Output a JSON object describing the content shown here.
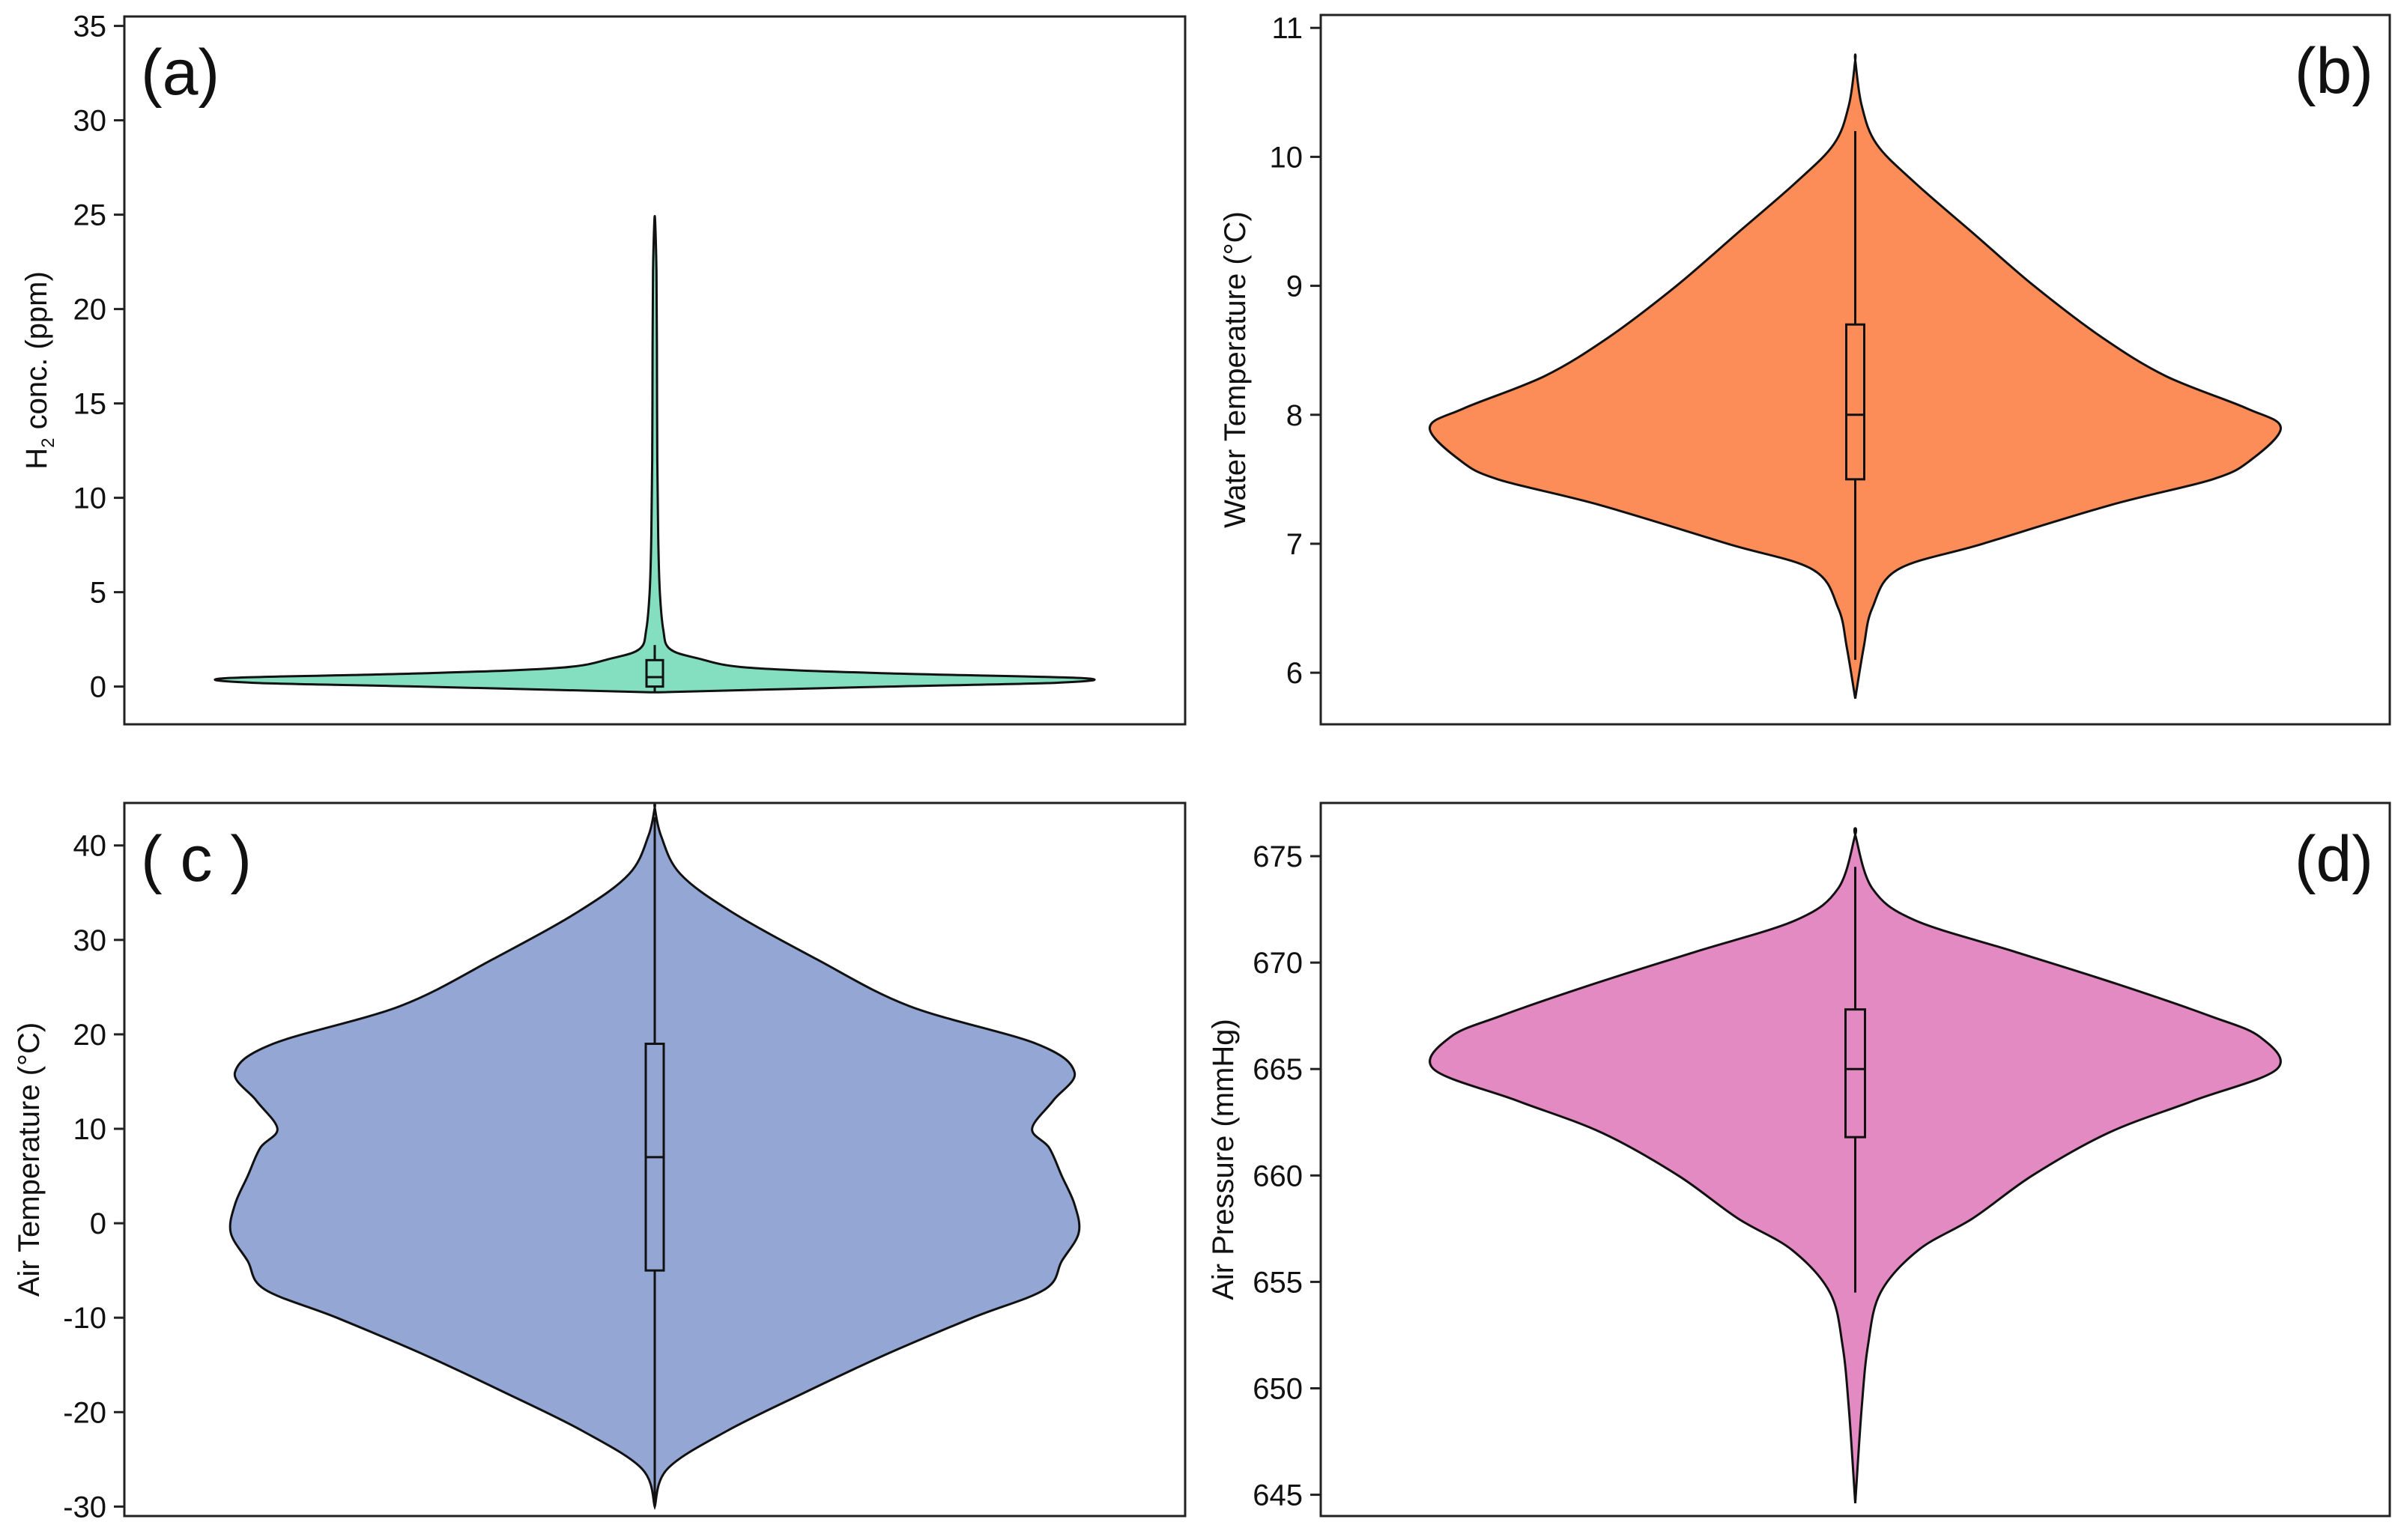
{
  "chart_data": [
    {
      "type": "violin",
      "panel_label": "(a)",
      "ylabel": "H2 conc. (ppm)",
      "ylabel_main": "H",
      "ylabel_sub": "2",
      "ylabel_rest": " conc. (ppm)",
      "ylim": [
        -2,
        35.5
      ],
      "yticks": [
        0,
        5,
        10,
        15,
        20,
        25,
        30,
        35
      ],
      "ytick_labels": [
        "0",
        "5",
        "10",
        "15",
        "20",
        "25",
        "30",
        "35"
      ],
      "fill_color": "#84dfc0",
      "label_position": "top-left",
      "violin_min": -0.3,
      "violin_max": 24.6,
      "density": [
        {
          "y": -0.3,
          "w": 0.01
        },
        {
          "y": 0.0,
          "w": 0.55
        },
        {
          "y": 0.2,
          "w": 0.94
        },
        {
          "y": 0.45,
          "w": 1.0
        },
        {
          "y": 0.7,
          "w": 0.55
        },
        {
          "y": 1.0,
          "w": 0.22
        },
        {
          "y": 1.5,
          "w": 0.1
        },
        {
          "y": 2.0,
          "w": 0.035
        },
        {
          "y": 3.0,
          "w": 0.02
        },
        {
          "y": 5.0,
          "w": 0.012
        },
        {
          "y": 8.0,
          "w": 0.008
        },
        {
          "y": 12.0,
          "w": 0.006
        },
        {
          "y": 18.0,
          "w": 0.005
        },
        {
          "y": 22.0,
          "w": 0.004
        },
        {
          "y": 24.6,
          "w": 0.001
        }
      ],
      "box": {
        "q1": 0.0,
        "median": 0.5,
        "q3": 1.4,
        "whisker_low": -0.3,
        "whisker_high": 2.2
      }
    },
    {
      "type": "violin",
      "panel_label": "(b)",
      "ylabel": "Water Temperature (°C)",
      "ylim": [
        5.6,
        11.1
      ],
      "yticks": [
        6,
        7,
        8,
        9,
        10,
        11
      ],
      "ytick_labels": [
        "6",
        "7",
        "8",
        "9",
        "10",
        "11"
      ],
      "fill_color": "#fc8d59",
      "label_position": "top-right",
      "violin_min": 5.8,
      "violin_max": 10.75,
      "density": [
        {
          "y": 5.8,
          "w": 0.0
        },
        {
          "y": 6.2,
          "w": 0.02
        },
        {
          "y": 6.5,
          "w": 0.04
        },
        {
          "y": 6.8,
          "w": 0.1
        },
        {
          "y": 7.0,
          "w": 0.3
        },
        {
          "y": 7.3,
          "w": 0.6
        },
        {
          "y": 7.5,
          "w": 0.84
        },
        {
          "y": 7.65,
          "w": 0.93
        },
        {
          "y": 7.9,
          "w": 1.0
        },
        {
          "y": 8.05,
          "w": 0.92
        },
        {
          "y": 8.3,
          "w": 0.73
        },
        {
          "y": 8.6,
          "w": 0.58
        },
        {
          "y": 9.0,
          "w": 0.42
        },
        {
          "y": 9.4,
          "w": 0.28
        },
        {
          "y": 9.8,
          "w": 0.14
        },
        {
          "y": 10.1,
          "w": 0.05
        },
        {
          "y": 10.4,
          "w": 0.015
        },
        {
          "y": 10.75,
          "w": 0.0
        }
      ],
      "box": {
        "q1": 7.5,
        "median": 8.0,
        "q3": 8.7,
        "whisker_low": 6.1,
        "whisker_high": 10.2
      }
    },
    {
      "type": "violin",
      "panel_label": "( c )",
      "ylabel": "Air Temperature (°C)",
      "ylim": [
        -31,
        44.5
      ],
      "yticks": [
        -30,
        -20,
        -10,
        0,
        10,
        20,
        30,
        40
      ],
      "ytick_labels": [
        "-30",
        "-20",
        "-10",
        "0",
        "10",
        "20",
        "30",
        "40"
      ],
      "fill_color": "#93a6d4",
      "label_position": "top-left",
      "violin_min": -30,
      "violin_max": 44,
      "density": [
        {
          "y": -30,
          "w": 0.0
        },
        {
          "y": -26,
          "w": 0.03
        },
        {
          "y": -22,
          "w": 0.17
        },
        {
          "y": -18,
          "w": 0.35
        },
        {
          "y": -14,
          "w": 0.54
        },
        {
          "y": -10,
          "w": 0.75
        },
        {
          "y": -7,
          "w": 0.92
        },
        {
          "y": -4,
          "w": 0.96
        },
        {
          "y": -1,
          "w": 1.0
        },
        {
          "y": 2,
          "w": 0.99
        },
        {
          "y": 5,
          "w": 0.96
        },
        {
          "y": 8,
          "w": 0.93
        },
        {
          "y": 10,
          "w": 0.89
        },
        {
          "y": 13,
          "w": 0.94
        },
        {
          "y": 16,
          "w": 0.99
        },
        {
          "y": 19,
          "w": 0.9
        },
        {
          "y": 23,
          "w": 0.6
        },
        {
          "y": 28,
          "w": 0.38
        },
        {
          "y": 33,
          "w": 0.18
        },
        {
          "y": 37,
          "w": 0.06
        },
        {
          "y": 41,
          "w": 0.015
        },
        {
          "y": 44,
          "w": 0.0
        }
      ],
      "box": {
        "q1": -5,
        "median": 7,
        "q3": 19,
        "whisker_low": -30,
        "whisker_high": 43
      }
    },
    {
      "type": "violin",
      "panel_label": "(d)",
      "ylabel": "Air Pressure (mmHg)",
      "ylim": [
        644,
        677.5
      ],
      "yticks": [
        645,
        650,
        655,
        660,
        665,
        670,
        675
      ],
      "ytick_labels": [
        "645",
        "650",
        "655",
        "660",
        "665",
        "670",
        "675"
      ],
      "fill_color": "#e38ac2",
      "label_position": "top-right",
      "violin_min": 644.6,
      "violin_max": 676,
      "density": [
        {
          "y": 644.6,
          "w": 0.0
        },
        {
          "y": 649,
          "w": 0.015
        },
        {
          "y": 652,
          "w": 0.03
        },
        {
          "y": 654.5,
          "w": 0.06
        },
        {
          "y": 656.5,
          "w": 0.15
        },
        {
          "y": 658,
          "w": 0.28
        },
        {
          "y": 660,
          "w": 0.42
        },
        {
          "y": 662,
          "w": 0.6
        },
        {
          "y": 663.5,
          "w": 0.8
        },
        {
          "y": 665,
          "w": 1.0
        },
        {
          "y": 666.5,
          "w": 0.96
        },
        {
          "y": 667.5,
          "w": 0.84
        },
        {
          "y": 669,
          "w": 0.62
        },
        {
          "y": 670.5,
          "w": 0.38
        },
        {
          "y": 672,
          "w": 0.14
        },
        {
          "y": 673.5,
          "w": 0.04
        },
        {
          "y": 676,
          "w": 0.0
        }
      ],
      "box": {
        "q1": 661.8,
        "median": 665,
        "q3": 667.8,
        "whisker_low": 654.5,
        "whisker_high": 674.5
      }
    }
  ]
}
